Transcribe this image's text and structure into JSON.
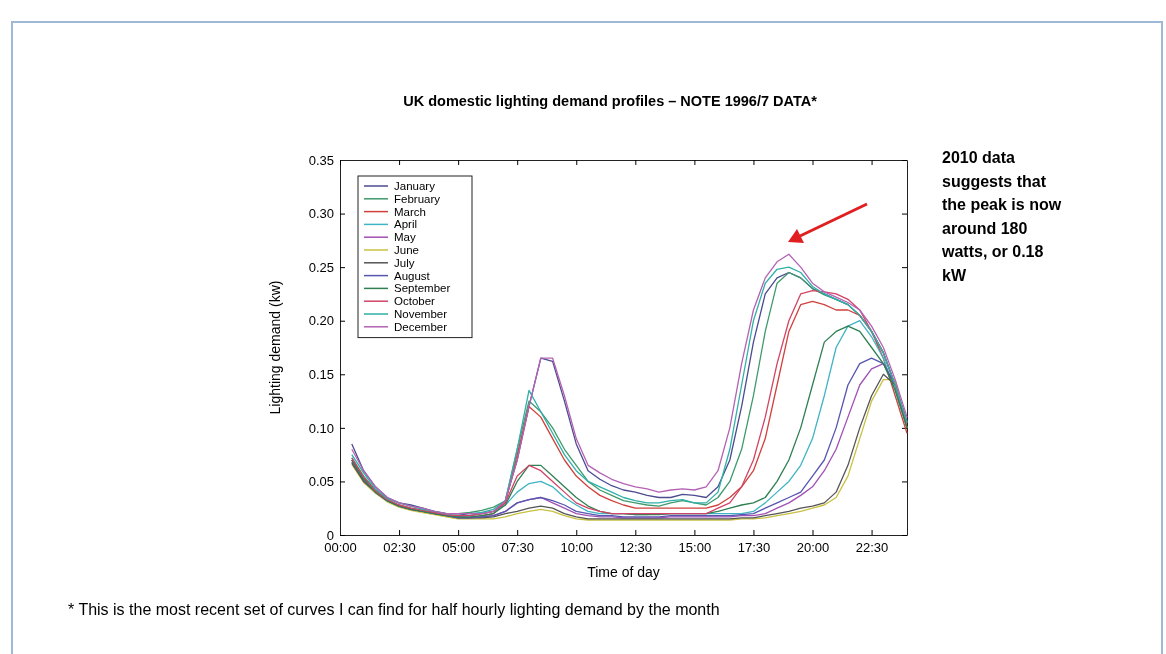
{
  "chart_data": {
    "type": "line",
    "title": "UK domestic lighting demand profiles – NOTE 1996/7 DATA*",
    "xlabel": "Time of day",
    "ylabel": "Lighting demand (kw)",
    "x": [
      0.5,
      1,
      1.5,
      2,
      2.5,
      3,
      3.5,
      4,
      4.5,
      5,
      5.5,
      6,
      6.5,
      7,
      7.5,
      8,
      8.5,
      9,
      9.5,
      10,
      10.5,
      11,
      11.5,
      12,
      12.5,
      13,
      13.5,
      14,
      14.5,
      15,
      15.5,
      16,
      16.5,
      17,
      17.5,
      18,
      18.5,
      19,
      19.5,
      20,
      20.5,
      21,
      21.5,
      22,
      22.5,
      23,
      23.5,
      24
    ],
    "xlim": [
      0,
      24
    ],
    "xticks": [
      {
        "value": 0,
        "label": "00:00"
      },
      {
        "value": 2.5,
        "label": "02:30"
      },
      {
        "value": 5,
        "label": "05:00"
      },
      {
        "value": 7.5,
        "label": "07:30"
      },
      {
        "value": 10,
        "label": "10:00"
      },
      {
        "value": 12.5,
        "label": "12:30"
      },
      {
        "value": 15,
        "label": "15:00"
      },
      {
        "value": 17.5,
        "label": "17:30"
      },
      {
        "value": 20,
        "label": "20:00"
      },
      {
        "value": 22.5,
        "label": "22:30"
      }
    ],
    "ylim": [
      0,
      0.35
    ],
    "yticks": [
      0,
      0.05,
      {
        "value": 0.1,
        "label": "0.10"
      },
      0.15,
      {
        "value": 0.2,
        "label": "0.20"
      },
      0.25,
      {
        "value": 0.3,
        "label": "0.30"
      },
      0.35
    ],
    "legend": "top left",
    "marker": "none",
    "line_style": "solid",
    "series": [
      {
        "name": "January",
        "color": "#4b4b8f",
        "values": [
          0.085,
          0.06,
          0.045,
          0.035,
          0.03,
          0.028,
          0.025,
          0.022,
          0.02,
          0.02,
          0.018,
          0.02,
          0.022,
          0.032,
          0.07,
          0.12,
          0.165,
          0.162,
          0.125,
          0.085,
          0.06,
          0.052,
          0.046,
          0.042,
          0.04,
          0.037,
          0.035,
          0.035,
          0.038,
          0.037,
          0.035,
          0.045,
          0.07,
          0.12,
          0.18,
          0.225,
          0.24,
          0.245,
          0.24,
          0.23,
          0.225,
          0.22,
          0.215,
          0.205,
          0.19,
          0.17,
          0.14,
          0.105
        ]
      },
      {
        "name": "February",
        "color": "#3f9a6e",
        "values": [
          0.072,
          0.055,
          0.042,
          0.033,
          0.028,
          0.025,
          0.023,
          0.021,
          0.02,
          0.02,
          0.021,
          0.023,
          0.026,
          0.032,
          0.08,
          0.125,
          0.115,
          0.1,
          0.08,
          0.065,
          0.05,
          0.042,
          0.037,
          0.032,
          0.03,
          0.028,
          0.027,
          0.03,
          0.032,
          0.03,
          0.028,
          0.035,
          0.05,
          0.08,
          0.13,
          0.19,
          0.235,
          0.245,
          0.24,
          0.23,
          0.224,
          0.22,
          0.215,
          0.205,
          0.19,
          0.17,
          0.14,
          0.105
        ]
      },
      {
        "name": "March",
        "color": "#d0403c",
        "values": [
          0.07,
          0.052,
          0.04,
          0.032,
          0.027,
          0.024,
          0.022,
          0.02,
          0.018,
          0.017,
          0.016,
          0.018,
          0.02,
          0.03,
          0.075,
          0.12,
          0.11,
          0.09,
          0.07,
          0.055,
          0.045,
          0.037,
          0.032,
          0.028,
          0.025,
          0.025,
          0.025,
          0.025,
          0.025,
          0.025,
          0.025,
          0.028,
          0.035,
          0.045,
          0.06,
          0.09,
          0.14,
          0.19,
          0.215,
          0.218,
          0.215,
          0.21,
          0.21,
          0.205,
          0.19,
          0.165,
          0.13,
          0.095
        ]
      },
      {
        "name": "April",
        "color": "#3fb4c4",
        "values": [
          0.07,
          0.052,
          0.04,
          0.032,
          0.027,
          0.024,
          0.022,
          0.02,
          0.018,
          0.017,
          0.018,
          0.02,
          0.022,
          0.028,
          0.04,
          0.048,
          0.05,
          0.045,
          0.035,
          0.028,
          0.022,
          0.02,
          0.02,
          0.02,
          0.019,
          0.019,
          0.02,
          0.02,
          0.02,
          0.02,
          0.02,
          0.02,
          0.02,
          0.02,
          0.022,
          0.03,
          0.04,
          0.05,
          0.065,
          0.09,
          0.13,
          0.175,
          0.195,
          0.2,
          0.185,
          0.165,
          0.135,
          0.1
        ]
      },
      {
        "name": "May",
        "color": "#a050b4",
        "values": [
          0.068,
          0.05,
          0.04,
          0.032,
          0.027,
          0.024,
          0.022,
          0.02,
          0.018,
          0.016,
          0.016,
          0.017,
          0.018,
          0.022,
          0.03,
          0.033,
          0.035,
          0.03,
          0.025,
          0.02,
          0.018,
          0.017,
          0.017,
          0.016,
          0.016,
          0.016,
          0.016,
          0.017,
          0.017,
          0.017,
          0.017,
          0.017,
          0.017,
          0.018,
          0.018,
          0.02,
          0.025,
          0.03,
          0.037,
          0.045,
          0.06,
          0.08,
          0.11,
          0.14,
          0.155,
          0.16,
          0.14,
          0.105
        ]
      },
      {
        "name": "June",
        "color": "#c8c040",
        "values": [
          0.066,
          0.049,
          0.039,
          0.031,
          0.026,
          0.023,
          0.021,
          0.019,
          0.017,
          0.015,
          0.015,
          0.015,
          0.015,
          0.017,
          0.02,
          0.022,
          0.024,
          0.022,
          0.018,
          0.015,
          0.014,
          0.014,
          0.014,
          0.014,
          0.014,
          0.014,
          0.014,
          0.014,
          0.014,
          0.014,
          0.014,
          0.014,
          0.014,
          0.015,
          0.015,
          0.016,
          0.018,
          0.02,
          0.022,
          0.025,
          0.028,
          0.035,
          0.055,
          0.09,
          0.125,
          0.145,
          0.145,
          0.1
        ]
      },
      {
        "name": "July",
        "color": "#555555",
        "values": [
          0.067,
          0.05,
          0.04,
          0.032,
          0.027,
          0.024,
          0.022,
          0.02,
          0.018,
          0.016,
          0.016,
          0.016,
          0.017,
          0.02,
          0.022,
          0.025,
          0.027,
          0.025,
          0.02,
          0.017,
          0.015,
          0.015,
          0.015,
          0.015,
          0.015,
          0.015,
          0.015,
          0.015,
          0.015,
          0.015,
          0.015,
          0.015,
          0.015,
          0.016,
          0.016,
          0.018,
          0.02,
          0.022,
          0.025,
          0.027,
          0.03,
          0.04,
          0.065,
          0.1,
          0.13,
          0.15,
          0.14,
          0.1
        ]
      },
      {
        "name": "August",
        "color": "#5656b0",
        "values": [
          0.07,
          0.052,
          0.04,
          0.032,
          0.027,
          0.024,
          0.022,
          0.02,
          0.018,
          0.016,
          0.016,
          0.017,
          0.018,
          0.022,
          0.03,
          0.033,
          0.035,
          0.032,
          0.028,
          0.022,
          0.02,
          0.018,
          0.018,
          0.017,
          0.017,
          0.017,
          0.017,
          0.018,
          0.018,
          0.018,
          0.018,
          0.018,
          0.018,
          0.019,
          0.02,
          0.025,
          0.03,
          0.035,
          0.04,
          0.055,
          0.07,
          0.1,
          0.14,
          0.16,
          0.165,
          0.16,
          0.14,
          0.105
        ]
      },
      {
        "name": "September",
        "color": "#2f7f52",
        "values": [
          0.07,
          0.052,
          0.04,
          0.032,
          0.027,
          0.024,
          0.022,
          0.02,
          0.018,
          0.017,
          0.017,
          0.018,
          0.02,
          0.028,
          0.05,
          0.065,
          0.065,
          0.055,
          0.045,
          0.035,
          0.027,
          0.022,
          0.02,
          0.02,
          0.019,
          0.019,
          0.019,
          0.02,
          0.02,
          0.02,
          0.02,
          0.022,
          0.025,
          0.028,
          0.03,
          0.035,
          0.05,
          0.07,
          0.1,
          0.14,
          0.18,
          0.19,
          0.195,
          0.19,
          0.175,
          0.16,
          0.135,
          0.1
        ]
      },
      {
        "name": "October",
        "color": "#d24466",
        "values": [
          0.072,
          0.054,
          0.041,
          0.033,
          0.028,
          0.025,
          0.023,
          0.021,
          0.019,
          0.018,
          0.018,
          0.02,
          0.022,
          0.03,
          0.055,
          0.065,
          0.06,
          0.05,
          0.04,
          0.03,
          0.025,
          0.022,
          0.02,
          0.02,
          0.02,
          0.02,
          0.02,
          0.02,
          0.02,
          0.02,
          0.02,
          0.025,
          0.03,
          0.045,
          0.07,
          0.11,
          0.16,
          0.2,
          0.225,
          0.228,
          0.227,
          0.225,
          0.22,
          0.21,
          0.19,
          0.17,
          0.14,
          0.105
        ]
      },
      {
        "name": "November",
        "color": "#2fb0a8",
        "values": [
          0.075,
          0.058,
          0.043,
          0.034,
          0.03,
          0.027,
          0.024,
          0.022,
          0.02,
          0.02,
          0.02,
          0.021,
          0.024,
          0.032,
          0.08,
          0.135,
          0.115,
          0.095,
          0.075,
          0.06,
          0.05,
          0.045,
          0.04,
          0.035,
          0.032,
          0.03,
          0.03,
          0.032,
          0.033,
          0.03,
          0.03,
          0.04,
          0.08,
          0.14,
          0.2,
          0.235,
          0.248,
          0.25,
          0.245,
          0.232,
          0.225,
          0.22,
          0.215,
          0.205,
          0.19,
          0.17,
          0.14,
          0.105
        ]
      },
      {
        "name": "December",
        "color": "#b462b4",
        "values": [
          0.08,
          0.06,
          0.045,
          0.035,
          0.03,
          0.027,
          0.025,
          0.022,
          0.02,
          0.02,
          0.02,
          0.02,
          0.022,
          0.032,
          0.07,
          0.12,
          0.165,
          0.165,
          0.13,
          0.09,
          0.065,
          0.058,
          0.052,
          0.048,
          0.045,
          0.043,
          0.04,
          0.042,
          0.043,
          0.042,
          0.045,
          0.06,
          0.1,
          0.16,
          0.21,
          0.24,
          0.255,
          0.262,
          0.25,
          0.235,
          0.227,
          0.222,
          0.217,
          0.21,
          0.195,
          0.175,
          0.145,
          0.11
        ]
      }
    ],
    "annotations": [
      "2010 data suggests that the peak is now around 180 watts, or 0.18 kW",
      "* This is the most recent set of curves I can find for half hourly lighting demand by the month"
    ]
  }
}
